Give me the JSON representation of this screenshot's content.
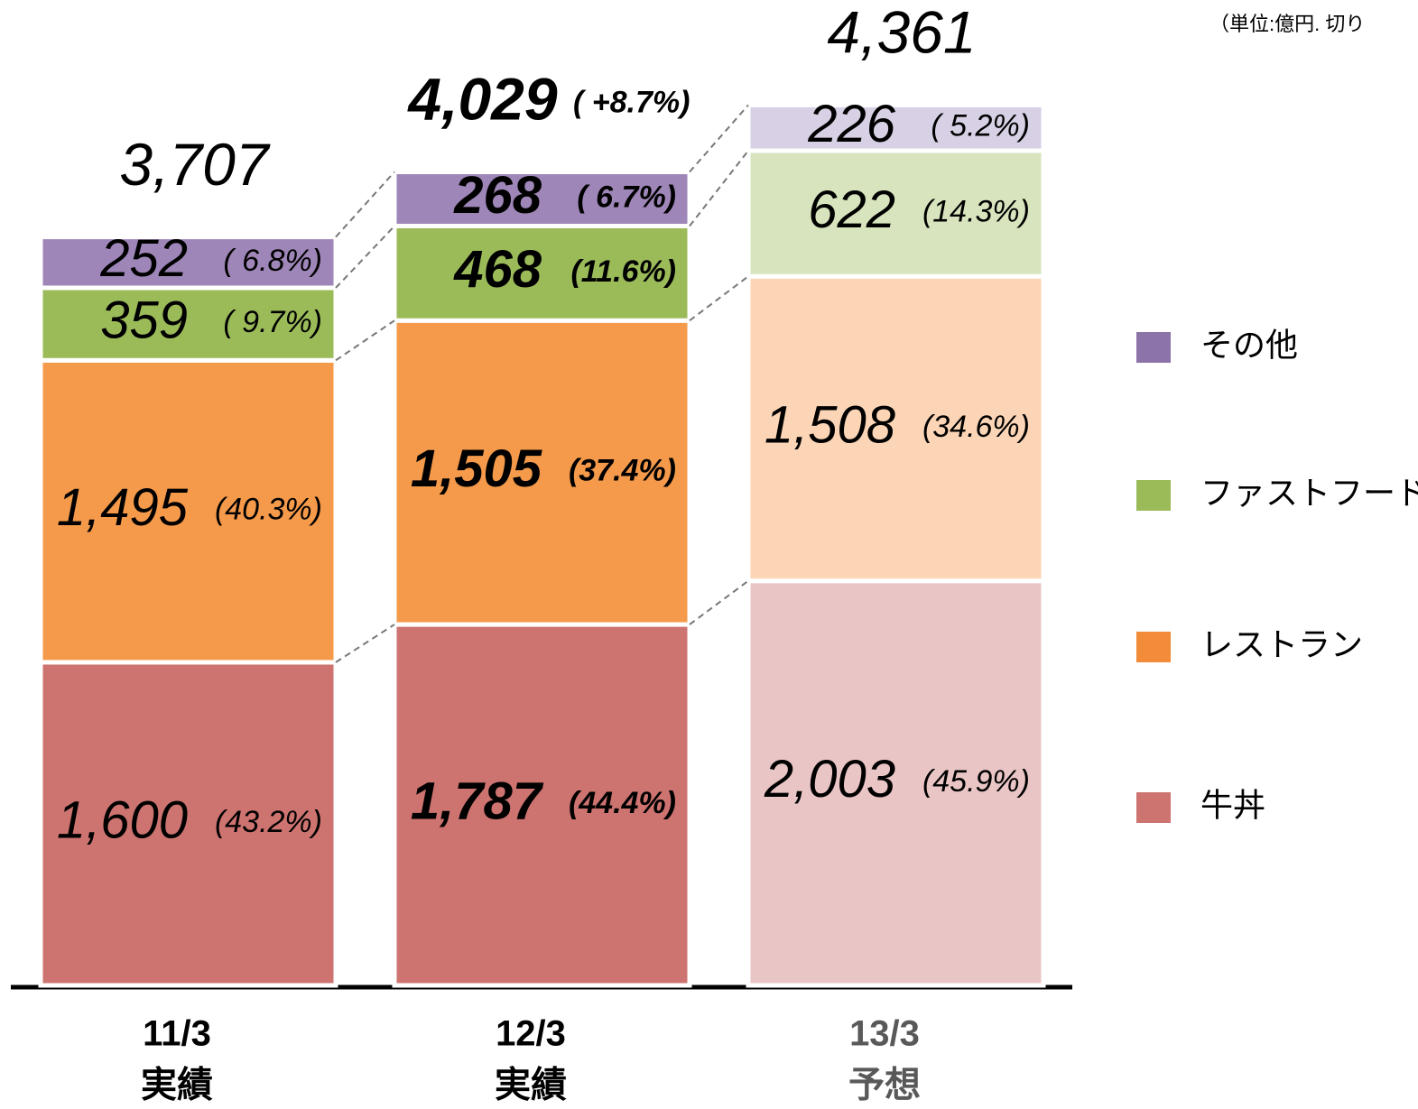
{
  "chart_data": {
    "type": "stacked-bar",
    "unit_note": "（単位:億円. 切り",
    "categories": [
      "11/3",
      "12/3",
      "13/3"
    ],
    "category_sublabels": [
      "実績",
      "実績",
      "予想"
    ],
    "series": [
      {
        "name": "牛丼",
        "color": "#cd7370",
        "colors": [
          "#cd7370",
          "#cd7370",
          "#eac5c5"
        ],
        "values": [
          1600,
          1787,
          2003
        ],
        "value_labels": [
          "1,600",
          "1,787",
          "2,003"
        ],
        "share_labels": [
          "(43.2%)",
          "(44.4%)",
          "(45.9%)"
        ]
      },
      {
        "name": "レストラン",
        "color": "#f28c38",
        "colors": [
          "#f59a4a",
          "#f59a4a",
          "#fbd5b5"
        ],
        "values": [
          1495,
          1505,
          1508
        ],
        "value_labels": [
          "1,495",
          "1,505",
          "1,508"
        ],
        "share_labels": [
          "(40.3%)",
          "(37.4%)",
          "(34.6%)"
        ]
      },
      {
        "name": "ファストフード",
        "color": "#9bbb59",
        "colors": [
          "#9bbb59",
          "#9bbb59",
          "#d7e4bd"
        ],
        "values": [
          359,
          468,
          622
        ],
        "share_labels": [
          "( 9.7%)",
          "(11.6%)",
          "(14.3%)"
        ]
      },
      {
        "name": "その他",
        "color": "#8c73a8",
        "colors": [
          "#9e86b8",
          "#9e86b8",
          "#d8d0e4"
        ],
        "values": [
          252,
          268,
          226
        ],
        "share_labels": [
          "( 6.8%)",
          "( 6.7%)",
          "( 5.2%)"
        ]
      }
    ],
    "totals": {
      "values": [
        3707,
        4029,
        4361
      ],
      "value_labels": [
        "3,707",
        "4,029",
        "4,361"
      ]
    },
    "annotations": [
      {
        "text": "( +8.7%)"
      }
    ]
  }
}
